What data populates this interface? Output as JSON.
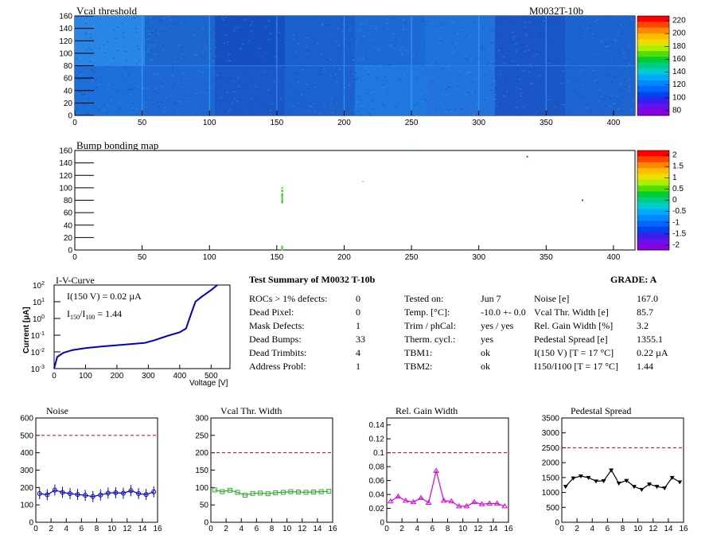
{
  "top": {
    "title_left": "Vcal threshold",
    "title_right": "M0032T-10b",
    "x_ticks": [
      "0",
      "50",
      "100",
      "150",
      "200",
      "250",
      "300",
      "350",
      "400"
    ],
    "y_ticks": [
      "0",
      "20",
      "40",
      "60",
      "80",
      "100",
      "120",
      "140",
      "160"
    ],
    "scale_ticks": [
      "220",
      "200",
      "180",
      "160",
      "140",
      "120",
      "100",
      "80"
    ]
  },
  "bump": {
    "title": "Bump bonding map",
    "x_ticks": [
      "0",
      "50",
      "100",
      "150",
      "200",
      "250",
      "300",
      "350",
      "400"
    ],
    "y_ticks": [
      "0",
      "20",
      "40",
      "60",
      "80",
      "100",
      "120",
      "140",
      "160"
    ],
    "scale_ticks": [
      "2",
      "1.5",
      "1",
      "0.5",
      "0",
      "-0.5",
      "-1",
      "-1.5",
      "-2"
    ]
  },
  "iv": {
    "title": "I-V-Curve",
    "ylabel": "Current [µA]",
    "xlabel": "Voltage [V]",
    "note1": "I(150 V) = 0.02 µA",
    "note2_a": "I",
    "note2_sub1": "150",
    "note2_b": "/I",
    "note2_sub2": "100",
    "note2_c": " =  1.44",
    "x_ticks": [
      "0",
      "100",
      "200",
      "300",
      "400",
      "500"
    ],
    "y_ticks": [
      "2",
      "1",
      "0",
      "-1",
      "-2",
      "-3"
    ]
  },
  "summary": {
    "title": "Test Summary of M0032     T-10b",
    "grade": "GRADE:  A",
    "col1": [
      [
        "ROCs > 1% defects:",
        "0"
      ],
      [
        "Dead Pixel:",
        "0"
      ],
      [
        "Mask Defects:",
        "1"
      ],
      [
        "Dead Bumps:",
        "33"
      ],
      [
        "Dead Trimbits:",
        "4"
      ],
      [
        "Address Probl:",
        "1"
      ]
    ],
    "col2": [
      [
        "Tested on:",
        "Jun 7"
      ],
      [
        "Temp. [°C]:",
        "-10.0 +- 0.0"
      ],
      [
        "Trim / phCal:",
        "yes / yes"
      ],
      [
        "Therm. cycl.:",
        "yes"
      ],
      [
        "TBM1:",
        "ok"
      ],
      [
        "TBM2:",
        "ok"
      ]
    ],
    "col3": [
      [
        "Noise [e]",
        "167.0"
      ],
      [
        "Vcal Thr. Width [e]",
        "85.7"
      ],
      [
        "Rel. Gain Width [%]",
        "3.2"
      ],
      [
        "Pedestal Spread [e]",
        "1355.1"
      ],
      [
        "I(150 V) [T = 17 °C]",
        "0.22 µA"
      ],
      [
        "I150/I100  [T = 17 °C]",
        "1.44"
      ]
    ]
  },
  "chart_data": [
    {
      "type": "heatmap",
      "title": "Vcal threshold",
      "xlim": [
        0,
        416
      ],
      "ylim": [
        0,
        160
      ],
      "zlim": [
        80,
        230
      ],
      "description_levels": "mostly blue, ~100-120"
    },
    {
      "type": "heatmap",
      "title": "Bump bonding map",
      "xlim": [
        0,
        416
      ],
      "ylim": [
        0,
        160
      ],
      "zlim": [
        -2,
        2
      ]
    },
    {
      "type": "line",
      "title": "I-V-Curve",
      "xlabel": "Voltage [V]",
      "ylabel": "Current [µA]",
      "yscale": "log",
      "xlim": [
        0,
        560
      ],
      "ylim": [
        0.001,
        100
      ],
      "x": [
        0,
        10,
        30,
        60,
        100,
        150,
        200,
        250,
        290,
        320,
        360,
        400,
        420,
        440,
        450,
        470,
        500,
        520
      ],
      "y": [
        0.001,
        0.005,
        0.009,
        0.013,
        0.017,
        0.021,
        0.025,
        0.03,
        0.035,
        0.05,
        0.09,
        0.15,
        0.25,
        3,
        10,
        20,
        50,
        100
      ]
    },
    {
      "type": "line",
      "title": "Noise",
      "xlim": [
        0,
        16
      ],
      "ylim": [
        0,
        600
      ],
      "threshold": 500,
      "color": "#0000cc",
      "x": [
        0.5,
        1.5,
        2.5,
        3.5,
        4.5,
        5.5,
        6.5,
        7.5,
        8.5,
        9.5,
        10.5,
        11.5,
        12.5,
        13.5,
        14.5,
        15.5
      ],
      "values": [
        165,
        158,
        185,
        172,
        165,
        160,
        155,
        148,
        157,
        168,
        170,
        167,
        182,
        165,
        160,
        175
      ]
    },
    {
      "type": "line",
      "title": "Vcal Thr. Width",
      "xlim": [
        0,
        16
      ],
      "ylim": [
        0,
        300
      ],
      "threshold": 200,
      "color": "#33aa33",
      "x": [
        0.5,
        1.5,
        2.5,
        3.5,
        4.5,
        5.5,
        6.5,
        7.5,
        8.5,
        9.5,
        10.5,
        11.5,
        12.5,
        13.5,
        14.5,
        15.5
      ],
      "values": [
        93,
        88,
        92,
        86,
        78,
        83,
        84,
        82,
        85,
        86,
        88,
        87,
        86,
        87,
        88,
        89
      ]
    },
    {
      "type": "line",
      "title": "Rel. Gain Width",
      "xlim": [
        0,
        16
      ],
      "ylim": [
        0,
        0.15
      ],
      "threshold": 0.1,
      "color": "#dd00dd",
      "x": [
        0.5,
        1.5,
        2.5,
        3.5,
        4.5,
        5.5,
        6.5,
        7.5,
        8.5,
        9.5,
        10.5,
        11.5,
        12.5,
        13.5,
        14.5,
        15.5
      ],
      "values": [
        0.03,
        0.037,
        0.031,
        0.029,
        0.035,
        0.028,
        0.074,
        0.031,
        0.03,
        0.023,
        0.023,
        0.029,
        0.026,
        0.027,
        0.027,
        0.023
      ]
    },
    {
      "type": "line",
      "title": "Pedestal Spread",
      "xlim": [
        0,
        16
      ],
      "ylim": [
        0,
        3500
      ],
      "threshold": 2500,
      "color": "#000000",
      "x": [
        0.5,
        1.5,
        2.5,
        3.5,
        4.5,
        5.5,
        6.5,
        7.5,
        8.5,
        9.5,
        10.5,
        11.5,
        12.5,
        13.5,
        14.5,
        15.5
      ],
      "values": [
        1200,
        1480,
        1550,
        1500,
        1380,
        1390,
        1750,
        1310,
        1400,
        1200,
        1100,
        1280,
        1200,
        1150,
        1500,
        1350
      ]
    }
  ],
  "small_titles": [
    "Noise",
    "Vcal Thr. Width",
    "Rel. Gain Width",
    "Pedestal Spread"
  ],
  "small_ticks": {
    "x": [
      "0",
      "2",
      "4",
      "6",
      "8",
      "10",
      "12",
      "14",
      "16"
    ],
    "noise_y": [
      "0",
      "100",
      "200",
      "300",
      "400",
      "500",
      "600"
    ],
    "vcal_y": [
      "0",
      "50",
      "100",
      "150",
      "200",
      "250",
      "300"
    ],
    "gain_y": [
      "0",
      "0.02",
      "0.04",
      "0.06",
      "0.08",
      "0.1",
      "0.12",
      "0.14"
    ],
    "ped_y": [
      "0",
      "500",
      "1000",
      "1500",
      "2000",
      "2500",
      "3000",
      "3500"
    ]
  }
}
